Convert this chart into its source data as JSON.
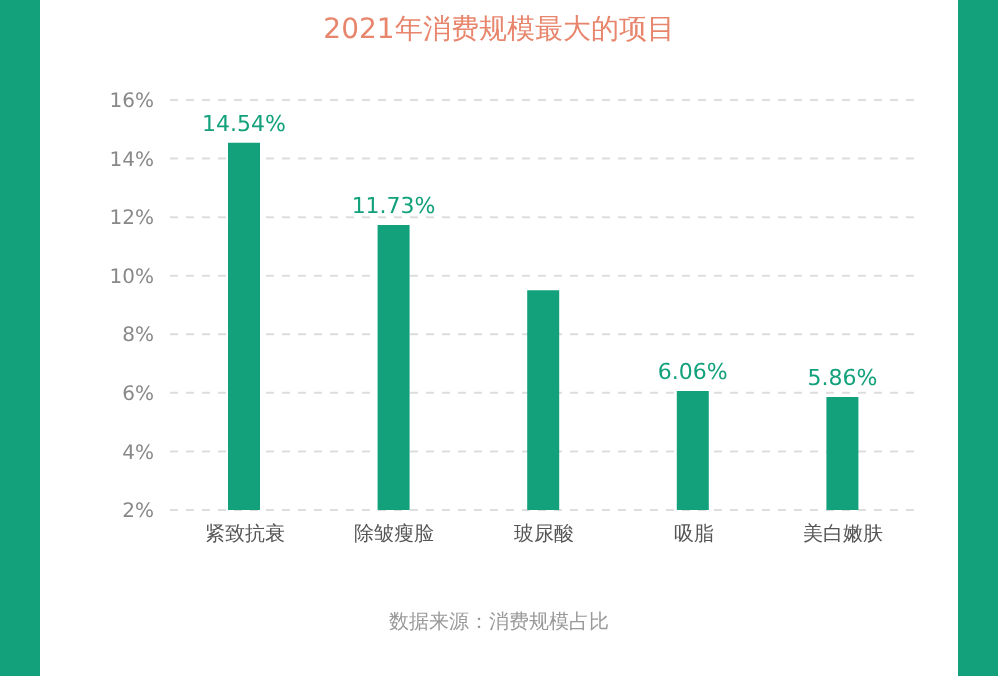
{
  "chart_data": {
    "type": "bar",
    "title": "2021年消费规模最大的项目",
    "categories": [
      "紧致抗衰",
      "除皱瘦脸",
      "玻尿酸",
      "吸脂",
      "美白嫩肤"
    ],
    "values": [
      14.54,
      11.73,
      9.5,
      6.06,
      5.86
    ],
    "value_labels": [
      "14.54%",
      "11.73%",
      null,
      "6.06%",
      "5.86%"
    ],
    "color": "#12a17b",
    "ylim": [
      2,
      16
    ],
    "yticks": [
      {
        "value": 2,
        "label": "2%"
      },
      {
        "value": 4,
        "label": "4%"
      },
      {
        "value": 6,
        "label": "6%"
      },
      {
        "value": 8,
        "label": "8%"
      },
      {
        "value": 10,
        "label": "10%"
      },
      {
        "value": 12,
        "label": "12%"
      },
      {
        "value": 14,
        "label": "14%"
      },
      {
        "value": 16,
        "label": "16%"
      }
    ],
    "grid": "y",
    "annotations": [
      "数据来源：消费规模占比"
    ]
  }
}
